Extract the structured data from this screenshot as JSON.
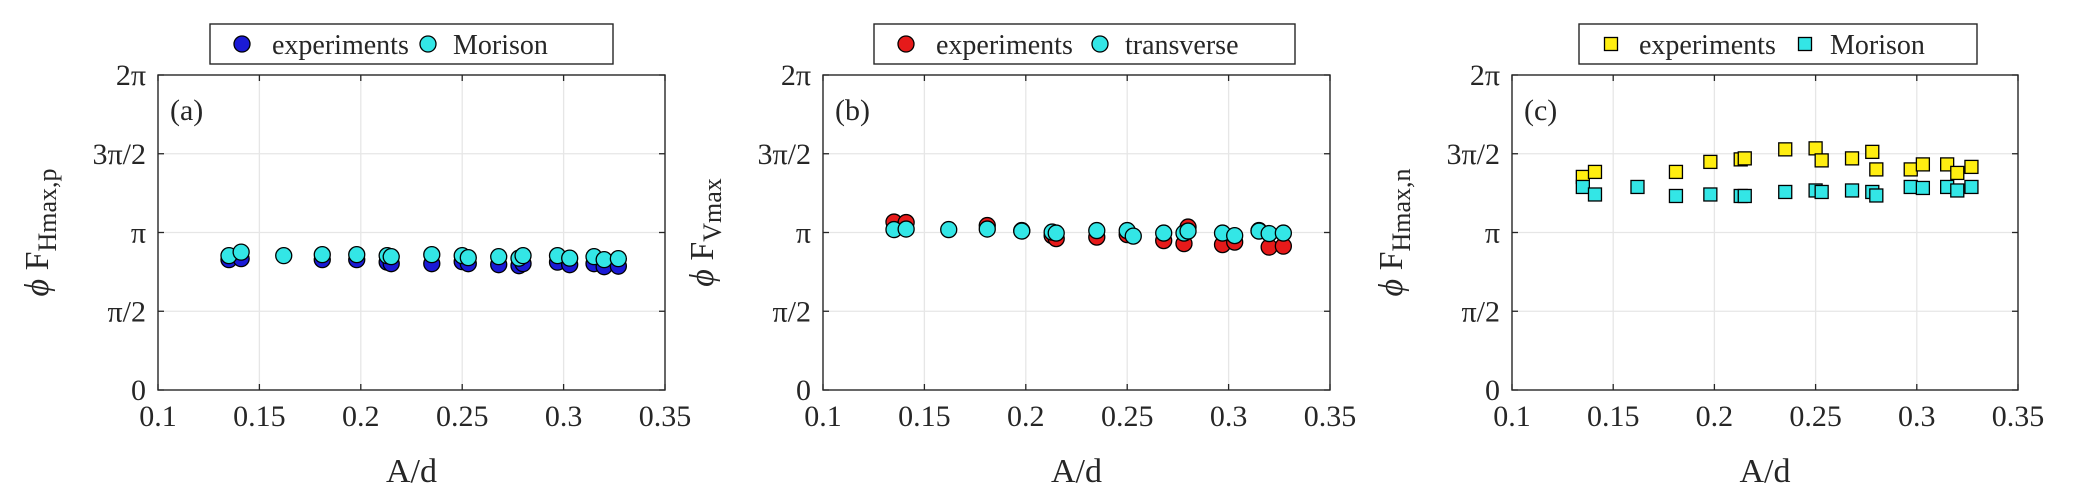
{
  "chart_data": [
    {
      "type": "scatter",
      "panel_label": "(a)",
      "ylabel_symbol": "ϕ",
      "ylabel_main": "F",
      "ylabel_sub": "Hmax,p",
      "xlabel": "A/d",
      "xlim": [
        0.1,
        0.35
      ],
      "ylim": [
        0,
        6.2832
      ],
      "xticks": [
        0.1,
        0.15,
        0.2,
        0.25,
        0.3,
        0.35
      ],
      "xtick_labels": [
        "0.1",
        "0.15",
        "0.2",
        "0.25",
        "0.3",
        "0.35"
      ],
      "yticks": [
        0,
        1.5708,
        3.1416,
        4.7124,
        6.2832
      ],
      "ytick_labels": [
        "0",
        "π/2",
        "π",
        "3π/2",
        "2π"
      ],
      "grid": true,
      "legend_position": "top-center",
      "series": [
        {
          "name": "experiments",
          "marker": "circle",
          "color": "#1a1ad6",
          "x": [
            0.135,
            0.141,
            0.181,
            0.198,
            0.213,
            0.215,
            0.235,
            0.25,
            0.253,
            0.268,
            0.278,
            0.28,
            0.297,
            0.303,
            0.315,
            0.32,
            0.327
          ],
          "y": [
            2.6,
            2.62,
            2.6,
            2.6,
            2.55,
            2.52,
            2.52,
            2.56,
            2.52,
            2.5,
            2.48,
            2.52,
            2.55,
            2.5,
            2.52,
            2.46,
            2.47
          ]
        },
        {
          "name": "Morison",
          "marker": "circle",
          "color": "#33e6e6",
          "x": [
            0.135,
            0.141,
            0.162,
            0.181,
            0.198,
            0.213,
            0.215,
            0.235,
            0.25,
            0.253,
            0.268,
            0.278,
            0.28,
            0.297,
            0.303,
            0.315,
            0.32,
            0.327
          ],
          "y": [
            2.68,
            2.75,
            2.68,
            2.7,
            2.7,
            2.68,
            2.66,
            2.7,
            2.68,
            2.64,
            2.66,
            2.63,
            2.68,
            2.68,
            2.63,
            2.66,
            2.6,
            2.62
          ]
        }
      ]
    },
    {
      "type": "scatter",
      "panel_label": "(b)",
      "ylabel_symbol": "ϕ",
      "ylabel_main": "F",
      "ylabel_sub": "Vmax",
      "xlabel": "A/d",
      "xlim": [
        0.1,
        0.35
      ],
      "ylim": [
        0,
        6.2832
      ],
      "xticks": [
        0.1,
        0.15,
        0.2,
        0.25,
        0.3,
        0.35
      ],
      "xtick_labels": [
        "0.1",
        "0.15",
        "0.2",
        "0.25",
        "0.3",
        "0.35"
      ],
      "yticks": [
        0,
        1.5708,
        3.1416,
        4.7124,
        6.2832
      ],
      "ytick_labels": [
        "0",
        "π/2",
        "π",
        "3π/2",
        "2π"
      ],
      "grid": true,
      "legend_position": "top-center",
      "series": [
        {
          "name": "experiments",
          "marker": "circle",
          "color": "#e61a1a",
          "x": [
            0.135,
            0.141,
            0.181,
            0.198,
            0.213,
            0.215,
            0.235,
            0.25,
            0.268,
            0.278,
            0.28,
            0.297,
            0.303,
            0.315,
            0.32,
            0.327
          ],
          "y": [
            3.35,
            3.34,
            3.28,
            3.18,
            3.08,
            3.02,
            3.05,
            3.1,
            2.98,
            2.92,
            3.25,
            2.9,
            2.95,
            3.18,
            2.85,
            2.87
          ]
        },
        {
          "name": "transverse",
          "marker": "circle",
          "color": "#33e6e6",
          "x": [
            0.135,
            0.141,
            0.162,
            0.181,
            0.198,
            0.213,
            0.215,
            0.235,
            0.25,
            0.253,
            0.268,
            0.278,
            0.28,
            0.297,
            0.303,
            0.315,
            0.32,
            0.327
          ],
          "y": [
            3.2,
            3.21,
            3.2,
            3.21,
            3.17,
            3.15,
            3.13,
            3.18,
            3.18,
            3.07,
            3.13,
            3.13,
            3.17,
            3.13,
            3.08,
            3.17,
            3.12,
            3.13
          ]
        }
      ]
    },
    {
      "type": "scatter",
      "panel_label": "(c)",
      "ylabel_symbol": "ϕ",
      "ylabel_main": "F",
      "ylabel_sub": "Hmax,n",
      "xlabel": "A/d",
      "xlim": [
        0.1,
        0.35
      ],
      "ylim": [
        0,
        6.2832
      ],
      "xticks": [
        0.1,
        0.15,
        0.2,
        0.25,
        0.3,
        0.35
      ],
      "xtick_labels": [
        "0.1",
        "0.15",
        "0.2",
        "0.25",
        "0.3",
        "0.35"
      ],
      "yticks": [
        0,
        1.5708,
        3.1416,
        4.7124,
        6.2832
      ],
      "ytick_labels": [
        "0",
        "π/2",
        "π",
        "3π/2",
        "2π"
      ],
      "grid": true,
      "legend_position": "top-center",
      "series": [
        {
          "name": "experiments",
          "marker": "square",
          "color": "#ffee11",
          "x": [
            0.135,
            0.141,
            0.181,
            0.198,
            0.213,
            0.215,
            0.235,
            0.25,
            0.253,
            0.268,
            0.278,
            0.28,
            0.297,
            0.303,
            0.315,
            0.32,
            0.327
          ],
          "y": [
            4.25,
            4.35,
            4.35,
            4.55,
            4.6,
            4.62,
            4.8,
            4.82,
            4.58,
            4.62,
            4.75,
            4.4,
            4.4,
            4.5,
            4.5,
            4.33,
            4.45
          ]
        },
        {
          "name": "Morison",
          "marker": "square",
          "color": "#33e6e6",
          "x": [
            0.135,
            0.141,
            0.162,
            0.181,
            0.198,
            0.213,
            0.215,
            0.235,
            0.25,
            0.253,
            0.268,
            0.278,
            0.28,
            0.297,
            0.303,
            0.315,
            0.32,
            0.327
          ],
          "y": [
            4.05,
            3.9,
            4.05,
            3.87,
            3.9,
            3.87,
            3.87,
            3.95,
            3.98,
            3.95,
            3.98,
            3.95,
            3.88,
            4.05,
            4.03,
            4.05,
            3.98,
            4.05
          ]
        }
      ]
    }
  ]
}
